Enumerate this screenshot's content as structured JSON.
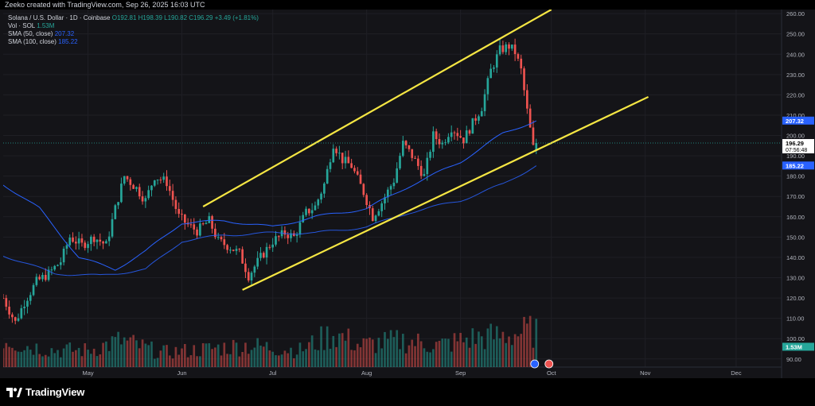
{
  "header": {
    "attribution": "Zeeko created with TradingView.com, Sep 26, 2025 16:03 UTC"
  },
  "legend": {
    "symbol": "Solana / U.S. Dollar · 1D · Coinbase",
    "ohlc": "O192.81 H198.39 L190.82 C196.29 +3.49 (+1.81%)",
    "vol_label": "Vol · SOL",
    "vol_value": "1.53M",
    "sma50_label": "SMA (50, close)",
    "sma50_value": "207.32",
    "sma100_label": "SMA (100, close)",
    "sma100_value": "185.22"
  },
  "footer": {
    "brand": "TradingView"
  },
  "colors": {
    "up": "#26a69a",
    "down": "#ef5350",
    "sma": "#2962ff",
    "trendline": "#f5e643",
    "background": "#141418",
    "grid": "#1f1f25",
    "axis_text": "#b2b5be"
  },
  "chart_data": {
    "type": "candlestick",
    "title": "Solana / U.S. Dollar · 1D · Coinbase",
    "y_ticks": [
      90,
      100,
      110,
      120,
      130,
      140,
      150,
      160,
      170,
      180,
      190,
      200,
      210,
      220,
      230,
      240,
      250,
      260
    ],
    "y_tick_labels": [
      "90.00",
      "100.00",
      "110.00",
      "120.00",
      "130.00",
      "140.00",
      "150.00",
      "160.00",
      "170.00",
      "180.00",
      "190.00",
      "200.00",
      "210.00",
      "220.00",
      "230.00",
      "240.00",
      "250.00",
      "260.00"
    ],
    "ylim": [
      86,
      262
    ],
    "x_labels": [
      "May",
      "Jun",
      "Jul",
      "Aug",
      "Sep",
      "Oct",
      "Nov",
      "Dec"
    ],
    "x_label_dates": [
      "2025-05-01",
      "2025-06-01",
      "2025-07-01",
      "2025-08-01",
      "2025-09-01",
      "2025-10-01",
      "2025-11-01",
      "2025-12-01"
    ],
    "xlim": [
      "2025-04-03",
      "2025-12-16"
    ],
    "price_badges": [
      {
        "label": "207.32",
        "value": 207.32,
        "color": "#2962ff",
        "text_color": "#ffffff"
      },
      {
        "label": "196.29",
        "value": 196.29,
        "color": "#ffffff",
        "text_color": "#000000",
        "sub": "07:56:48"
      },
      {
        "label": "185.22",
        "value": 185.22,
        "color": "#2962ff",
        "text_color": "#ffffff"
      },
      {
        "label": "1.53M",
        "value": 96,
        "color": "#26a69a",
        "text_color": "#ffffff"
      }
    ],
    "closes_keypoints": [
      [
        "2025-04-03",
        120
      ],
      [
        "2025-04-07",
        108
      ],
      [
        "2025-04-10",
        118
      ],
      [
        "2025-04-14",
        128
      ],
      [
        "2025-04-18",
        132
      ],
      [
        "2025-04-22",
        138
      ],
      [
        "2025-04-25",
        150
      ],
      [
        "2025-04-29",
        146
      ],
      [
        "2025-05-03",
        150
      ],
      [
        "2025-05-07",
        146
      ],
      [
        "2025-05-10",
        164
      ],
      [
        "2025-05-13",
        180
      ],
      [
        "2025-05-17",
        174
      ],
      [
        "2025-05-20",
        168
      ],
      [
        "2025-05-23",
        180
      ],
      [
        "2025-05-27",
        177
      ],
      [
        "2025-05-31",
        160
      ],
      [
        "2025-06-03",
        156
      ],
      [
        "2025-06-06",
        153
      ],
      [
        "2025-06-10",
        158
      ],
      [
        "2025-06-13",
        148
      ],
      [
        "2025-06-17",
        145
      ],
      [
        "2025-06-20",
        142
      ],
      [
        "2025-06-23",
        131
      ],
      [
        "2025-06-27",
        140
      ],
      [
        "2025-07-01",
        148
      ],
      [
        "2025-07-05",
        152
      ],
      [
        "2025-07-08",
        150
      ],
      [
        "2025-07-12",
        162
      ],
      [
        "2025-07-15",
        165
      ],
      [
        "2025-07-18",
        176
      ],
      [
        "2025-07-21",
        196
      ],
      [
        "2025-07-24",
        188
      ],
      [
        "2025-07-27",
        185
      ],
      [
        "2025-07-31",
        172
      ],
      [
        "2025-08-03",
        160
      ],
      [
        "2025-08-06",
        167
      ],
      [
        "2025-08-10",
        178
      ],
      [
        "2025-08-13",
        196
      ],
      [
        "2025-08-16",
        190
      ],
      [
        "2025-08-20",
        180
      ],
      [
        "2025-08-23",
        200
      ],
      [
        "2025-08-26",
        196
      ],
      [
        "2025-08-29",
        204
      ],
      [
        "2025-09-02",
        198
      ],
      [
        "2025-09-05",
        206
      ],
      [
        "2025-09-08",
        214
      ],
      [
        "2025-09-11",
        232
      ],
      [
        "2025-09-14",
        242
      ],
      [
        "2025-09-17",
        244
      ],
      [
        "2025-09-19",
        241
      ],
      [
        "2025-09-21",
        232
      ],
      [
        "2025-09-23",
        212
      ],
      [
        "2025-09-25",
        194
      ],
      [
        "2025-09-26",
        196.29
      ]
    ],
    "sma50_keypoints": [
      [
        "2025-04-03",
        176
      ],
      [
        "2025-04-15",
        164
      ],
      [
        "2025-04-28",
        140
      ],
      [
        "2025-05-10",
        134
      ],
      [
        "2025-05-20",
        143
      ],
      [
        "2025-06-01",
        157
      ],
      [
        "2025-06-15",
        158
      ],
      [
        "2025-07-01",
        155
      ],
      [
        "2025-07-15",
        160
      ],
      [
        "2025-08-01",
        164
      ],
      [
        "2025-08-15",
        175
      ],
      [
        "2025-09-01",
        187
      ],
      [
        "2025-09-15",
        201
      ],
      [
        "2025-09-26",
        207.32
      ]
    ],
    "sma100_keypoints": [
      [
        "2025-04-03",
        141
      ],
      [
        "2025-04-20",
        132
      ],
      [
        "2025-05-05",
        131
      ],
      [
        "2025-05-20",
        134
      ],
      [
        "2025-06-01",
        148
      ],
      [
        "2025-06-15",
        151
      ],
      [
        "2025-07-01",
        152
      ],
      [
        "2025-07-15",
        152
      ],
      [
        "2025-08-01",
        155
      ],
      [
        "2025-08-15",
        162
      ],
      [
        "2025-09-01",
        168
      ],
      [
        "2025-09-15",
        176
      ],
      [
        "2025-09-26",
        185.22
      ]
    ],
    "volume_relative_keypoints": [
      [
        "2025-04-03",
        0.6
      ],
      [
        "2025-04-10",
        0.45
      ],
      [
        "2025-04-20",
        0.35
      ],
      [
        "2025-05-01",
        0.35
      ],
      [
        "2025-05-12",
        0.55
      ],
      [
        "2025-05-25",
        0.3
      ],
      [
        "2025-06-05",
        0.35
      ],
      [
        "2025-06-22",
        0.45
      ],
      [
        "2025-07-10",
        0.35
      ],
      [
        "2025-07-21",
        0.7
      ],
      [
        "2025-07-30",
        0.45
      ],
      [
        "2025-08-13",
        0.55
      ],
      [
        "2025-08-25",
        0.45
      ],
      [
        "2025-09-05",
        0.6
      ],
      [
        "2025-09-15",
        0.65
      ],
      [
        "2025-09-25",
        0.75
      ]
    ],
    "trendlines": [
      {
        "name": "upper-channel",
        "start": [
          "2025-06-08",
          165
        ],
        "end": [
          "2025-10-01",
          262
        ]
      },
      {
        "name": "lower-channel",
        "start": [
          "2025-06-21",
          124
        ],
        "end": [
          "2025-11-02",
          219
        ]
      }
    ]
  }
}
